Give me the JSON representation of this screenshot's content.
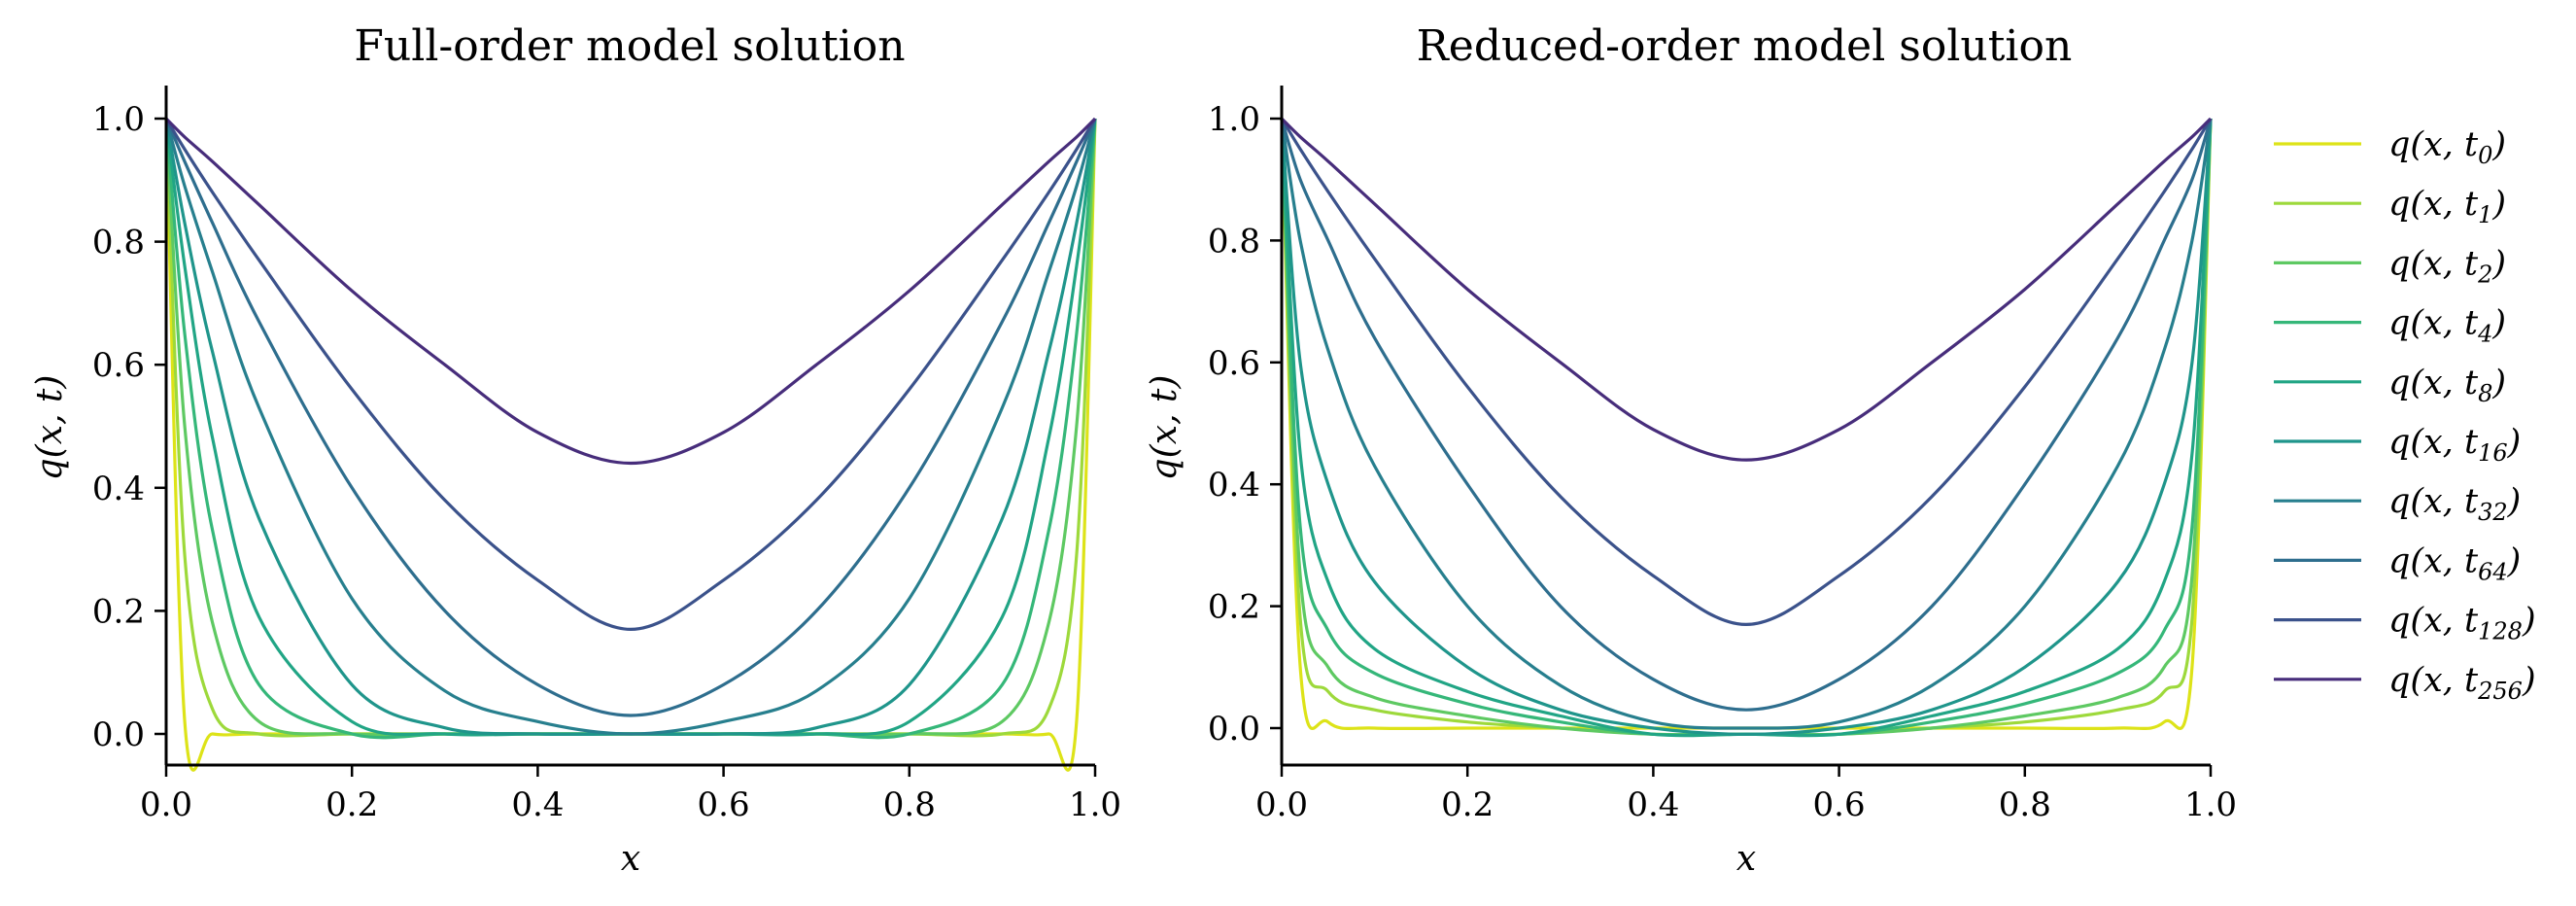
{
  "chart_data": [
    {
      "type": "line",
      "title": "Full-order model solution",
      "xlabel": "x",
      "ylabel": "q(x, t)",
      "xlim": [
        0.0,
        1.0
      ],
      "ylim": [
        -0.05,
        1.05
      ],
      "xticks": [
        "0.0",
        "0.2",
        "0.4",
        "0.6",
        "0.8",
        "1.0"
      ],
      "yticks": [
        "0.0",
        "0.2",
        "0.4",
        "0.6",
        "0.8",
        "1.0"
      ],
      "grid": false,
      "series_note": "each curve q(x,t_k) for snapshot k; boundary values 1.0 at x=0 and x=1",
      "series": [
        {
          "name": "q(x,t0)",
          "color": "#dde318",
          "x": [
            0.0,
            0.02,
            0.05,
            0.1,
            0.2,
            0.3,
            0.4,
            0.5,
            0.6,
            0.7,
            0.8,
            0.9,
            0.95,
            0.98,
            1.0
          ],
          "values": [
            1.0,
            0.02,
            0.0,
            0.0,
            0.0,
            0.0,
            0.0,
            0.0,
            0.0,
            0.0,
            0.0,
            0.0,
            0.0,
            0.02,
            1.0
          ]
        },
        {
          "name": "q(x,t1)",
          "color": "#9dd93b",
          "x": [
            0.0,
            0.02,
            0.05,
            0.1,
            0.2,
            0.3,
            0.4,
            0.5,
            0.6,
            0.7,
            0.8,
            0.9,
            0.95,
            0.98,
            1.0
          ],
          "values": [
            1.0,
            0.29,
            0.04,
            0.0,
            0.0,
            0.0,
            0.0,
            0.0,
            0.0,
            0.0,
            0.0,
            0.0,
            0.04,
            0.29,
            1.0
          ]
        },
        {
          "name": "q(x,t2)",
          "color": "#5ec962",
          "x": [
            0.0,
            0.02,
            0.05,
            0.1,
            0.2,
            0.3,
            0.4,
            0.5,
            0.6,
            0.7,
            0.8,
            0.9,
            0.95,
            0.98,
            1.0
          ],
          "values": [
            1.0,
            0.5,
            0.18,
            0.02,
            0.0,
            0.0,
            0.0,
            0.0,
            0.0,
            0.0,
            0.0,
            0.02,
            0.18,
            0.5,
            1.0
          ]
        },
        {
          "name": "q(x,t4)",
          "color": "#35b779",
          "x": [
            0.0,
            0.02,
            0.05,
            0.1,
            0.2,
            0.3,
            0.4,
            0.5,
            0.6,
            0.7,
            0.8,
            0.9,
            0.95,
            0.98,
            1.0
          ],
          "values": [
            1.0,
            0.65,
            0.33,
            0.08,
            0.0,
            0.0,
            0.0,
            0.0,
            0.0,
            0.0,
            0.0,
            0.08,
            0.33,
            0.65,
            1.0
          ]
        },
        {
          "name": "q(x,t8)",
          "color": "#21a585",
          "x": [
            0.0,
            0.02,
            0.05,
            0.1,
            0.2,
            0.3,
            0.4,
            0.5,
            0.6,
            0.7,
            0.8,
            0.9,
            0.95,
            0.98,
            1.0
          ],
          "values": [
            1.0,
            0.76,
            0.48,
            0.19,
            0.02,
            0.0,
            0.0,
            0.0,
            0.0,
            0.0,
            0.02,
            0.19,
            0.48,
            0.76,
            1.0
          ]
        },
        {
          "name": "q(x,t16)",
          "color": "#1f958b",
          "x": [
            0.0,
            0.02,
            0.05,
            0.1,
            0.2,
            0.3,
            0.4,
            0.5,
            0.6,
            0.7,
            0.8,
            0.9,
            0.95,
            0.98,
            1.0
          ],
          "values": [
            1.0,
            0.83,
            0.62,
            0.35,
            0.08,
            0.01,
            0.0,
            0.0,
            0.0,
            0.01,
            0.08,
            0.35,
            0.62,
            0.83,
            1.0
          ]
        },
        {
          "name": "q(x,t32)",
          "color": "#277f8e",
          "x": [
            0.0,
            0.02,
            0.05,
            0.1,
            0.2,
            0.3,
            0.4,
            0.5,
            0.6,
            0.7,
            0.8,
            0.9,
            0.95,
            0.98,
            1.0
          ],
          "values": [
            1.0,
            0.89,
            0.75,
            0.53,
            0.22,
            0.07,
            0.02,
            0.0,
            0.02,
            0.07,
            0.22,
            0.53,
            0.75,
            0.89,
            1.0
          ]
        },
        {
          "name": "q(x,t64)",
          "color": "#2e6e8e",
          "x": [
            0.0,
            0.02,
            0.05,
            0.1,
            0.2,
            0.3,
            0.4,
            0.5,
            0.6,
            0.7,
            0.8,
            0.9,
            0.95,
            0.98,
            1.0
          ],
          "values": [
            1.0,
            0.93,
            0.83,
            0.67,
            0.4,
            0.2,
            0.08,
            0.03,
            0.08,
            0.2,
            0.4,
            0.67,
            0.83,
            0.93,
            1.0
          ]
        },
        {
          "name": "q(x,t128)",
          "color": "#3b528b",
          "x": [
            0.0,
            0.02,
            0.05,
            0.1,
            0.2,
            0.3,
            0.4,
            0.5,
            0.6,
            0.7,
            0.8,
            0.9,
            0.95,
            0.98,
            1.0
          ],
          "values": [
            1.0,
            0.95,
            0.88,
            0.77,
            0.56,
            0.38,
            0.25,
            0.17,
            0.25,
            0.38,
            0.56,
            0.77,
            0.88,
            0.95,
            1.0
          ]
        },
        {
          "name": "q(x,t256)",
          "color": "#472d7b",
          "x": [
            0.0,
            0.02,
            0.05,
            0.1,
            0.2,
            0.3,
            0.4,
            0.5,
            0.6,
            0.7,
            0.8,
            0.9,
            0.95,
            0.98,
            1.0
          ],
          "values": [
            1.0,
            0.97,
            0.93,
            0.86,
            0.72,
            0.6,
            0.49,
            0.44,
            0.49,
            0.6,
            0.72,
            0.86,
            0.93,
            0.97,
            1.0
          ]
        }
      ]
    },
    {
      "type": "line",
      "title": "Reduced-order model solution",
      "xlabel": "x",
      "ylabel": "q(x, t)",
      "xlim": [
        0.0,
        1.0
      ],
      "ylim": [
        -0.06,
        1.05
      ],
      "xticks": [
        "0.0",
        "0.2",
        "0.4",
        "0.6",
        "0.8",
        "1.0"
      ],
      "yticks": [
        "0.0",
        "0.2",
        "0.4",
        "0.6",
        "0.8",
        "1.0"
      ],
      "grid": false,
      "series": [
        {
          "name": "q(x,t0)",
          "color": "#dde318",
          "x": [
            0.0,
            0.02,
            0.05,
            0.1,
            0.2,
            0.3,
            0.4,
            0.5,
            0.6,
            0.7,
            0.8,
            0.9,
            0.95,
            0.98,
            1.0
          ],
          "values": [
            1.0,
            0.1,
            0.01,
            0.0,
            0.0,
            0.0,
            0.0,
            0.0,
            0.0,
            0.0,
            0.0,
            0.0,
            0.01,
            0.1,
            1.0
          ]
        },
        {
          "name": "q(x,t1)",
          "color": "#9dd93b",
          "x": [
            0.0,
            0.02,
            0.05,
            0.1,
            0.2,
            0.3,
            0.4,
            0.5,
            0.6,
            0.7,
            0.8,
            0.9,
            0.95,
            0.98,
            1.0
          ],
          "values": [
            1.0,
            0.18,
            0.06,
            0.03,
            0.01,
            0.0,
            -0.01,
            -0.01,
            -0.01,
            0.0,
            0.01,
            0.03,
            0.06,
            0.18,
            1.0
          ]
        },
        {
          "name": "q(x,t2)",
          "color": "#5ec962",
          "x": [
            0.0,
            0.02,
            0.05,
            0.1,
            0.2,
            0.3,
            0.4,
            0.5,
            0.6,
            0.7,
            0.8,
            0.9,
            0.95,
            0.98,
            1.0
          ],
          "values": [
            1.0,
            0.25,
            0.1,
            0.05,
            0.02,
            0.0,
            -0.01,
            -0.01,
            -0.01,
            0.0,
            0.02,
            0.05,
            0.1,
            0.25,
            1.0
          ]
        },
        {
          "name": "q(x,t4)",
          "color": "#35b779",
          "x": [
            0.0,
            0.02,
            0.05,
            0.1,
            0.2,
            0.3,
            0.4,
            0.5,
            0.6,
            0.7,
            0.8,
            0.9,
            0.95,
            0.98,
            1.0
          ],
          "values": [
            1.0,
            0.33,
            0.16,
            0.09,
            0.04,
            0.01,
            -0.01,
            -0.01,
            -0.01,
            0.01,
            0.04,
            0.09,
            0.16,
            0.33,
            1.0
          ]
        },
        {
          "name": "q(x,t8)",
          "color": "#21a585",
          "x": [
            0.0,
            0.02,
            0.05,
            0.1,
            0.2,
            0.3,
            0.4,
            0.5,
            0.6,
            0.7,
            0.8,
            0.9,
            0.95,
            0.98,
            1.0
          ],
          "values": [
            1.0,
            0.45,
            0.24,
            0.13,
            0.06,
            0.02,
            -0.01,
            -0.01,
            -0.01,
            0.02,
            0.06,
            0.13,
            0.24,
            0.45,
            1.0
          ]
        },
        {
          "name": "q(x,t16)",
          "color": "#1f958b",
          "x": [
            0.0,
            0.02,
            0.05,
            0.1,
            0.2,
            0.3,
            0.4,
            0.5,
            0.6,
            0.7,
            0.8,
            0.9,
            0.95,
            0.98,
            1.0
          ],
          "values": [
            1.0,
            0.6,
            0.4,
            0.24,
            0.1,
            0.03,
            0.0,
            -0.01,
            0.0,
            0.03,
            0.1,
            0.24,
            0.4,
            0.6,
            1.0
          ]
        },
        {
          "name": "q(x,t32)",
          "color": "#277f8e",
          "x": [
            0.0,
            0.02,
            0.05,
            0.1,
            0.2,
            0.3,
            0.4,
            0.5,
            0.6,
            0.7,
            0.8,
            0.9,
            0.95,
            0.98,
            1.0
          ],
          "values": [
            1.0,
            0.8,
            0.62,
            0.43,
            0.2,
            0.07,
            0.01,
            0.0,
            0.01,
            0.07,
            0.2,
            0.43,
            0.62,
            0.8,
            1.0
          ]
        },
        {
          "name": "q(x,t64)",
          "color": "#2e6e8e",
          "x": [
            0.0,
            0.02,
            0.05,
            0.1,
            0.2,
            0.3,
            0.4,
            0.5,
            0.6,
            0.7,
            0.8,
            0.9,
            0.95,
            0.98,
            1.0
          ],
          "values": [
            1.0,
            0.9,
            0.8,
            0.64,
            0.4,
            0.2,
            0.08,
            0.03,
            0.08,
            0.2,
            0.4,
            0.64,
            0.8,
            0.9,
            1.0
          ]
        },
        {
          "name": "q(x,t128)",
          "color": "#3b528b",
          "x": [
            0.0,
            0.02,
            0.05,
            0.1,
            0.2,
            0.3,
            0.4,
            0.5,
            0.6,
            0.7,
            0.8,
            0.9,
            0.95,
            0.98,
            1.0
          ],
          "values": [
            1.0,
            0.95,
            0.88,
            0.77,
            0.56,
            0.38,
            0.25,
            0.17,
            0.25,
            0.38,
            0.56,
            0.77,
            0.88,
            0.95,
            1.0
          ]
        },
        {
          "name": "q(x,t256)",
          "color": "#472d7b",
          "x": [
            0.0,
            0.02,
            0.05,
            0.1,
            0.2,
            0.3,
            0.4,
            0.5,
            0.6,
            0.7,
            0.8,
            0.9,
            0.95,
            0.98,
            1.0
          ],
          "values": [
            1.0,
            0.97,
            0.93,
            0.86,
            0.72,
            0.6,
            0.49,
            0.44,
            0.49,
            0.6,
            0.72,
            0.86,
            0.93,
            0.97,
            1.0
          ]
        }
      ]
    }
  ],
  "legend": {
    "placement": "right",
    "entries": [
      {
        "base": "q(x, t",
        "sub": "0",
        "close": ")",
        "color": "#dde318"
      },
      {
        "base": "q(x, t",
        "sub": "1",
        "close": ")",
        "color": "#9dd93b"
      },
      {
        "base": "q(x, t",
        "sub": "2",
        "close": ")",
        "color": "#5ec962"
      },
      {
        "base": "q(x, t",
        "sub": "4",
        "close": ")",
        "color": "#35b779"
      },
      {
        "base": "q(x, t",
        "sub": "8",
        "close": ")",
        "color": "#21a585"
      },
      {
        "base": "q(x, t",
        "sub": "16",
        "close": ")",
        "color": "#1f958b"
      },
      {
        "base": "q(x, t",
        "sub": "32",
        "close": ")",
        "color": "#277f8e"
      },
      {
        "base": "q(x, t",
        "sub": "64",
        "close": ")",
        "color": "#2e6e8e"
      },
      {
        "base": "q(x, t",
        "sub": "128",
        "close": ")",
        "color": "#3b528b"
      },
      {
        "base": "q(x, t",
        "sub": "256",
        "close": ")",
        "color": "#472d7b"
      }
    ]
  }
}
